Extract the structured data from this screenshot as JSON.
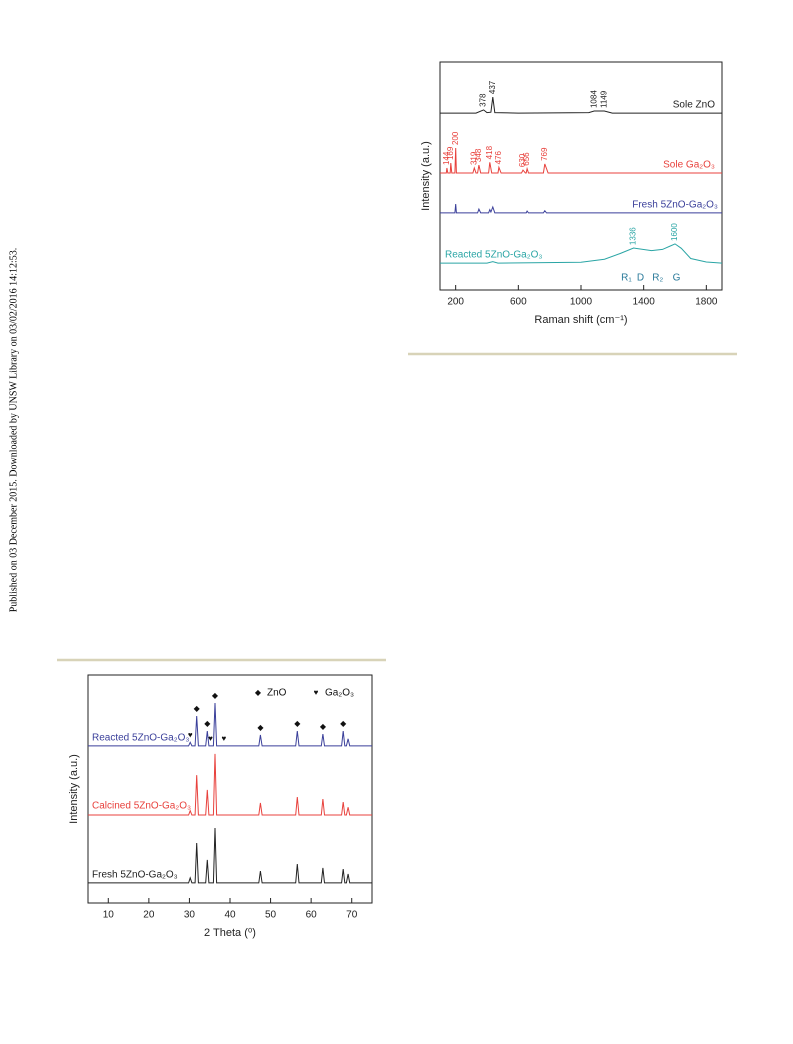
{
  "side_note": "Published on 03 December 2015. Downloaded by UNSW Library on 03/02/2016 14:12:53.",
  "chart_data": [
    {
      "type": "line",
      "x_label": "Raman shift (cm⁻¹)",
      "y_label": "Intensity (a.u.)",
      "xlim": [
        100,
        1900
      ],
      "xticks": [
        200,
        600,
        1000,
        1400,
        1800
      ],
      "ylim": [
        0,
        100
      ],
      "series": [
        {
          "name": "Sole ZnO",
          "color": "#222222",
          "x": [
            100,
            330,
            378,
            400,
            425,
            437,
            450,
            600,
            1050,
            1084,
            1149,
            1200,
            1900
          ],
          "values": [
            77.6,
            77.6,
            79,
            77.8,
            78,
            84.6,
            77.8,
            77.6,
            77.8,
            78.5,
            78.5,
            77.6,
            77.6
          ],
          "peak_labels": [
            378,
            437,
            1084,
            1149
          ]
        },
        {
          "name": "Sole Ga₂O₃",
          "color": "#e8413c",
          "x": [
            100,
            140,
            144,
            150,
            165,
            169,
            175,
            195,
            200,
            205,
            310,
            319,
            330,
            340,
            348,
            360,
            410,
            418,
            430,
            470,
            476,
            490,
            620,
            630,
            645,
            650,
            656,
            665,
            760,
            769,
            790,
            1900
          ],
          "values": [
            51.3,
            51.3,
            53.5,
            51.3,
            51.3,
            55.7,
            51.3,
            51.3,
            62.3,
            51.3,
            51.3,
            53.5,
            51.3,
            51.3,
            54.8,
            51.3,
            51.3,
            56,
            51.3,
            51.3,
            53.8,
            51.3,
            51.3,
            52.6,
            51.3,
            51.3,
            53.2,
            51.3,
            51.3,
            55.3,
            51.3,
            51.3
          ],
          "peak_labels": [
            144,
            169,
            200,
            319,
            348,
            418,
            476,
            630,
            656,
            769
          ]
        },
        {
          "name": "Fresh 5ZnO-Ga₂O₃",
          "color": "#3a3f9a",
          "x": [
            100,
            195,
            200,
            205,
            340,
            348,
            360,
            410,
            418,
            425,
            437,
            450,
            650,
            656,
            665,
            760,
            769,
            780,
            1900
          ],
          "values": [
            33.8,
            33.8,
            37.7,
            33.8,
            33.8,
            35.5,
            33.8,
            33.8,
            35.2,
            34.2,
            36.4,
            33.8,
            33.8,
            34.6,
            33.8,
            33.8,
            34.8,
            33.8,
            33.8
          ],
          "peak_labels": []
        },
        {
          "name": "Reacted 5ZnO-Ga₂O₃",
          "color": "#2aa5a5",
          "x": [
            100,
            400,
            437,
            470,
            1000,
            1150,
            1250,
            1336,
            1450,
            1520,
            1570,
            1600,
            1640,
            1700,
            1800,
            1900
          ],
          "values": [
            11.8,
            11.8,
            12.4,
            11.8,
            12.2,
            13.5,
            16,
            18.4,
            17.3,
            17.8,
            19.3,
            20.2,
            18.3,
            13.8,
            12.3,
            11.8
          ],
          "peak_labels": [
            1336,
            1600
          ]
        }
      ],
      "fit_labels": [
        {
          "text": "R₁",
          "x": 1290
        },
        {
          "text": "D",
          "x": 1380
        },
        {
          "text": "R₂",
          "x": 1490
        },
        {
          "text": "G",
          "x": 1610
        }
      ]
    },
    {
      "type": "line",
      "x_label": "2 Theta (⁰)",
      "y_label": "Intensity (a.u.)",
      "xlim": [
        5,
        75
      ],
      "xticks": [
        10,
        20,
        30,
        40,
        50,
        60,
        70
      ],
      "ylim": [
        0,
        100
      ],
      "series": [
        {
          "name": "Reacted 5ZnO-Ga₂O₃",
          "color": "#3a3f9a",
          "x": [
            5,
            29.8,
            30.2,
            30.6,
            31.4,
            31.8,
            32.2,
            34,
            34.4,
            34.8,
            35.9,
            36.3,
            36.7,
            47.1,
            47.5,
            47.9,
            56.2,
            56.6,
            57,
            62.5,
            62.9,
            63.3,
            67.5,
            67.9,
            68.3,
            68.7,
            69.1,
            69.5,
            75
          ],
          "values": [
            68.9,
            68.9,
            70.5,
            68.9,
            68.9,
            82,
            68.9,
            68.9,
            75.4,
            68.9,
            68.9,
            87.7,
            68.9,
            68.9,
            73.7,
            68.9,
            68.9,
            75.4,
            68.9,
            68.9,
            74.1,
            68.9,
            68.9,
            75.4,
            68.9,
            68.9,
            72,
            68.9,
            68.9
          ],
          "peak_labels": []
        },
        {
          "name": "Calcined 5ZnO-Ga₂O₃",
          "color": "#e8413c",
          "x": [
            5,
            29.8,
            30.2,
            30.6,
            31.4,
            31.8,
            32.2,
            34,
            34.4,
            34.8,
            35.9,
            36.3,
            36.7,
            47.1,
            47.5,
            47.9,
            56.2,
            56.6,
            57,
            62.5,
            62.9,
            63.3,
            67.5,
            67.9,
            68.3,
            68.7,
            69.1,
            69.5,
            75
          ],
          "values": [
            38.6,
            38.6,
            40.5,
            38.6,
            38.6,
            56.1,
            38.6,
            38.6,
            49.6,
            38.6,
            38.6,
            65.4,
            38.6,
            38.6,
            43.9,
            38.6,
            38.6,
            46.5,
            38.6,
            38.6,
            45.6,
            38.6,
            38.6,
            44.3,
            38.6,
            38.6,
            42,
            38.6,
            38.6
          ],
          "peak_labels": []
        },
        {
          "name": "Fresh 5ZnO-Ga₂O₃",
          "color": "#222222",
          "x": [
            5,
            29.8,
            30.2,
            30.6,
            31.4,
            31.8,
            32.2,
            34,
            34.4,
            34.8,
            35.9,
            36.3,
            36.7,
            47.1,
            47.5,
            47.9,
            56.2,
            56.6,
            57,
            62.5,
            62.9,
            63.3,
            67.5,
            67.9,
            68.3,
            68.7,
            69.1,
            69.5,
            75
          ],
          "values": [
            8.8,
            8.8,
            11,
            8.8,
            8.8,
            26.3,
            8.8,
            8.8,
            18.9,
            8.8,
            8.8,
            32.9,
            8.8,
            8.8,
            14,
            8.8,
            8.8,
            17.1,
            8.8,
            8.8,
            15.4,
            8.8,
            8.8,
            14.9,
            8.8,
            8.8,
            12.7,
            8.8,
            8.8
          ],
          "peak_labels": []
        }
      ],
      "legend": [
        {
          "symbol": "◆",
          "label": "ZnO"
        },
        {
          "symbol": "♥",
          "label": "Ga₂O₃"
        }
      ],
      "markers": [
        {
          "symbol": "♥",
          "x": 30.2
        },
        {
          "symbol": "◆",
          "x": 31.8
        },
        {
          "symbol": "◆",
          "x": 34.4
        },
        {
          "symbol": "♥",
          "x": 35.2
        },
        {
          "symbol": "◆",
          "x": 36.3
        },
        {
          "symbol": "♥",
          "x": 38.5
        },
        {
          "symbol": "◆",
          "x": 47.5
        },
        {
          "symbol": "◆",
          "x": 56.6
        },
        {
          "symbol": "◆",
          "x": 62.9
        },
        {
          "symbol": "◆",
          "x": 67.9
        }
      ]
    }
  ]
}
